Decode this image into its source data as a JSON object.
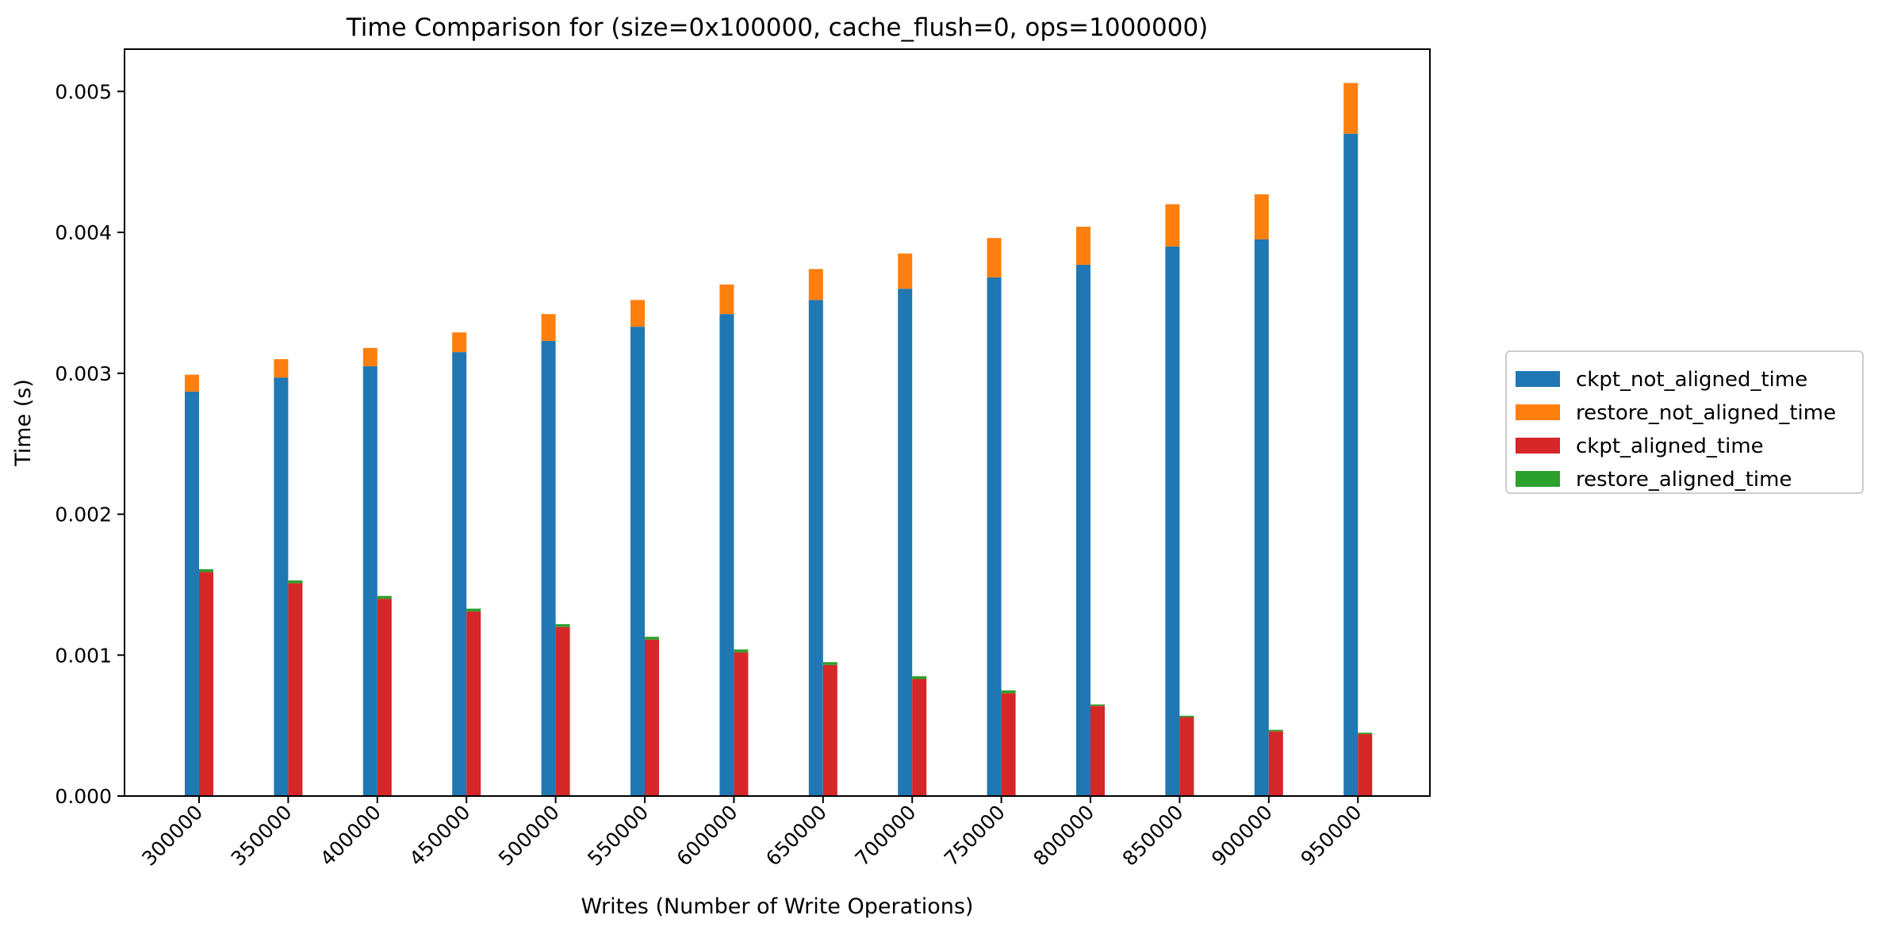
{
  "chart_data": {
    "type": "bar",
    "title": "Time Comparison for (size=0x100000, cache_flush=0, ops=1000000)",
    "xlabel": "Writes (Number of Write Operations)",
    "ylabel": "Time (s)",
    "ylim": [
      0,
      0.0053
    ],
    "yticks": [
      "0.000",
      "0.001",
      "0.002",
      "0.003",
      "0.004",
      "0.005"
    ],
    "categories": [
      "300000",
      "350000",
      "400000",
      "450000",
      "500000",
      "550000",
      "600000",
      "650000",
      "700000",
      "750000",
      "800000",
      "850000",
      "900000",
      "950000"
    ],
    "grid": false,
    "legend_position": "right",
    "stacks": [
      {
        "name": "not_aligned",
        "series": [
          {
            "name": "ckpt_not_aligned_time",
            "color": "#1f77b4",
            "values": [
              0.00287,
              0.00297,
              0.00305,
              0.00315,
              0.00323,
              0.00333,
              0.00342,
              0.00352,
              0.0036,
              0.00368,
              0.00377,
              0.0039,
              0.00395,
              0.0047
            ]
          },
          {
            "name": "restore_not_aligned_time",
            "color": "#ff7f0e",
            "values": [
              0.00012,
              0.00013,
              0.00013,
              0.00014,
              0.00019,
              0.00019,
              0.00021,
              0.00022,
              0.00025,
              0.00028,
              0.00027,
              0.0003,
              0.00032,
              0.00036
            ]
          }
        ]
      },
      {
        "name": "aligned",
        "series": [
          {
            "name": "ckpt_aligned_time",
            "color": "#d62728",
            "values": [
              0.00159,
              0.00151,
              0.0014,
              0.00131,
              0.0012,
              0.00111,
              0.00102,
              0.00093,
              0.00083,
              0.00073,
              0.00064,
              0.00056,
              0.00046,
              0.00044
            ]
          },
          {
            "name": "restore_aligned_time",
            "color": "#2ca02c",
            "values": [
              2e-05,
              2e-05,
              2e-05,
              2e-05,
              2e-05,
              2e-05,
              2e-05,
              2e-05,
              2e-05,
              2e-05,
              1e-05,
              1e-05,
              1e-05,
              1e-05
            ]
          }
        ]
      }
    ],
    "legend_entries": [
      "ckpt_not_aligned_time",
      "restore_not_aligned_time",
      "ckpt_aligned_time",
      "restore_aligned_time"
    ]
  }
}
